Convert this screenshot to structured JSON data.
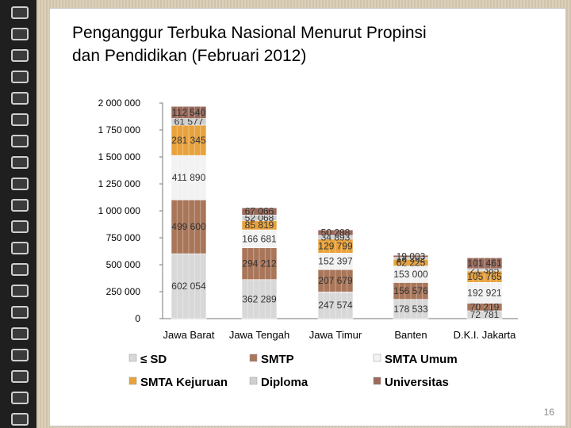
{
  "slide": {
    "title_line1": "Penganggur Terbuka Nasional Menurut Propinsi",
    "title_line2": "dan Pendidikan (Februari 2012)",
    "page_number": "16"
  },
  "chart_data": {
    "type": "bar",
    "stacked": true,
    "categories": [
      "Jawa Barat",
      "Jawa Tengah",
      "Jawa Timur",
      "Banten",
      "D.K.I. Jakarta"
    ],
    "series": [
      {
        "name": "≤ SD",
        "color": "#d8d8d8",
        "values": [
          602054,
          362289,
          247574,
          178533,
          72781
        ],
        "labels": [
          "602 054",
          "362 289",
          "247 574",
          "178 533",
          "72 781"
        ]
      },
      {
        "name": "SMTP",
        "color": "#a9765a",
        "values": [
          499600,
          294212,
          207679,
          156576,
          70219
        ],
        "labels": [
          "499 600",
          "294 212",
          "207 679",
          "156 576",
          "70 219"
        ]
      },
      {
        "name": "SMTA Umum",
        "color": "#f2f2f2",
        "values": [
          411890,
          166681,
          152397,
          153000,
          192921
        ],
        "labels": [
          "411 890",
          "166 681",
          "152 397",
          "153 000",
          "192 921"
        ]
      },
      {
        "name": "SMTA Kejuruan",
        "color": "#e8a23c",
        "values": [
          281345,
          85819,
          129799,
          62225,
          105765
        ],
        "labels": [
          "281 345",
          "85 819",
          "129 799",
          "62 225",
          "105 765"
        ]
      },
      {
        "name": "Diploma",
        "color": "#cfcfcf",
        "values": [
          61577,
          52068,
          34893,
          18262,
          21385
        ],
        "labels": [
          "61 577",
          "52 068",
          "34 893",
          "18 262",
          "21 385"
        ]
      },
      {
        "name": "Universitas",
        "color": "#9a6a5a",
        "values": [
          112540,
          67066,
          50288,
          19003,
          101461
        ],
        "labels": [
          "112 540",
          "67 066",
          "50 288",
          "19 003",
          "101 461"
        ]
      }
    ],
    "y_tick_labels": [
      "0",
      "250 000",
      "500 000",
      "750 000",
      "1 000 000",
      "1 250 000",
      "1 500 000",
      "1 750 000",
      "2 000 000"
    ],
    "ylim": [
      0,
      2000000
    ],
    "grid": false,
    "legend_position": "bottom"
  }
}
